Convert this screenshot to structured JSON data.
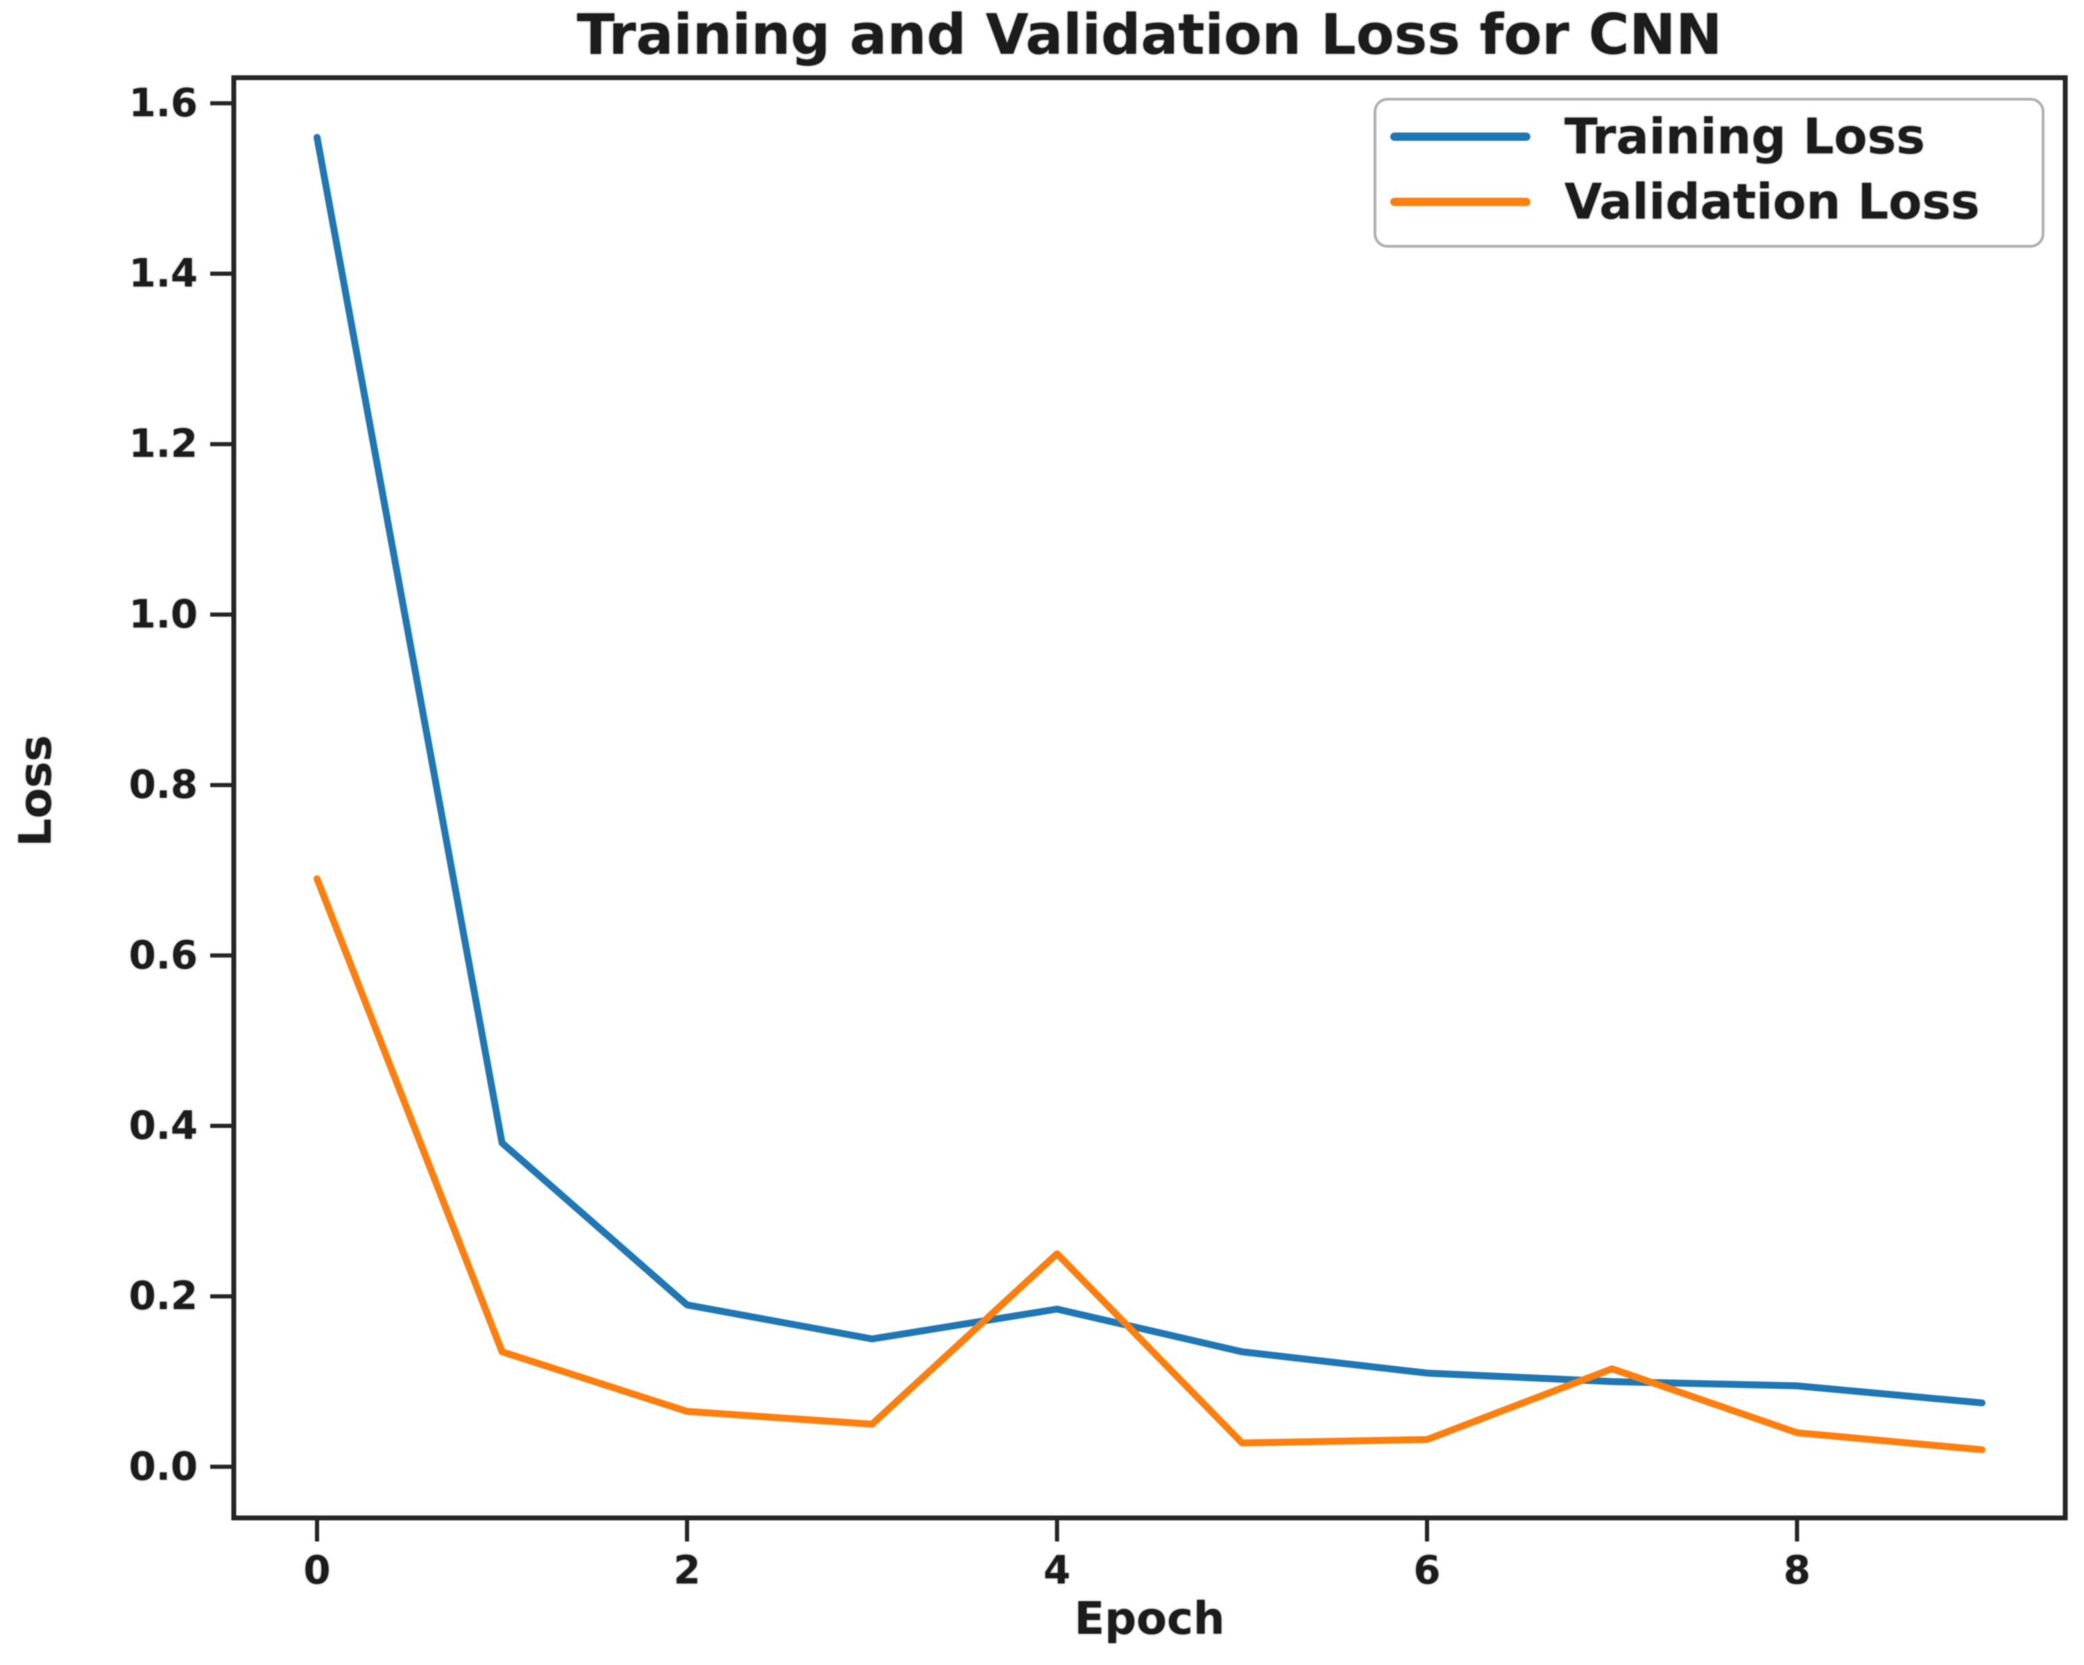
{
  "figure": {
    "title": "Training and Validation Loss for CNN",
    "xlabel": "Epoch",
    "ylabel": "Loss"
  },
  "legend": {
    "position": "upper right",
    "entries": [
      {
        "label": "Training Loss",
        "color": "#1f77b4"
      },
      {
        "label": "Validation Loss",
        "color": "#ff7f0e"
      }
    ]
  },
  "chart_data": {
    "type": "line",
    "title": "Training and Validation Loss for CNN",
    "xlabel": "Epoch",
    "ylabel": "Loss",
    "x": [
      0,
      1,
      2,
      3,
      4,
      5,
      6,
      7,
      8,
      9
    ],
    "series": [
      {
        "name": "Training Loss",
        "color": "#1f77b4",
        "values": [
          1.56,
          0.38,
          0.19,
          0.15,
          0.185,
          0.135,
          0.11,
          0.1,
          0.095,
          0.075
        ]
      },
      {
        "name": "Validation Loss",
        "color": "#ff7f0e",
        "values": [
          0.69,
          0.135,
          0.065,
          0.05,
          0.25,
          0.028,
          0.032,
          0.115,
          0.04,
          0.02
        ]
      }
    ],
    "xticks": [
      0,
      2,
      4,
      6,
      8
    ],
    "yticks": [
      0.0,
      0.2,
      0.4,
      0.6,
      0.8,
      1.0,
      1.2,
      1.4,
      1.6
    ],
    "xlim": [
      -0.45,
      9.45
    ],
    "ylim": [
      -0.06,
      1.63
    ],
    "grid": false,
    "legend_position": "upper right"
  },
  "colors": {
    "axis": "#262626",
    "background": "#ffffff",
    "legend_border": "#b0b0b0"
  }
}
